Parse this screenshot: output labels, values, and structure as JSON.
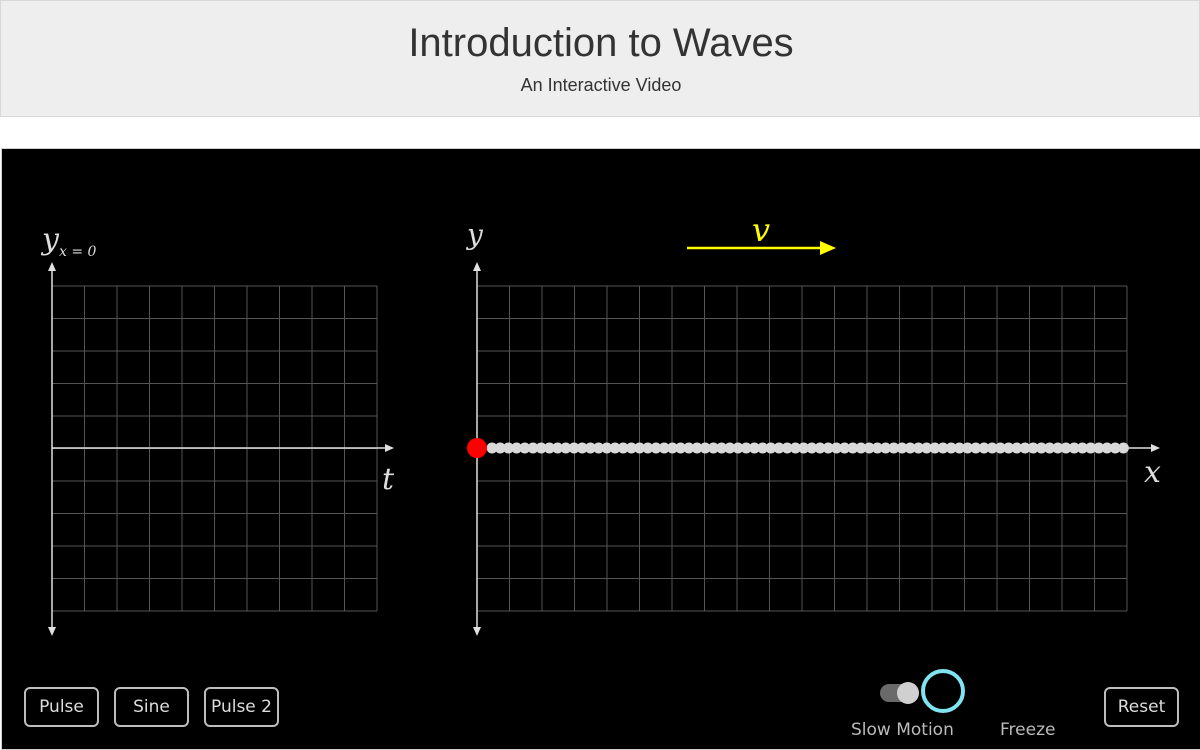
{
  "header": {
    "title": "Introduction to Waves",
    "subtitle": "An Interactive Video"
  },
  "left_graph": {
    "y_label": "y",
    "y_subscript": "x = 0",
    "x_label": "t"
  },
  "right_graph": {
    "y_label": "y",
    "x_label": "x",
    "velocity_label": "v",
    "velocity_color": "#ffff00"
  },
  "wave": {
    "source_color": "#ff0000",
    "particle_color": "#d9d9d9"
  },
  "controls": {
    "pulse_label": "Pulse",
    "sine_label": "Sine",
    "pulse2_label": "Pulse 2",
    "slow_motion_label": "Slow Motion",
    "freeze_label": "Freeze",
    "reset_label": "Reset",
    "freeze_ring_color": "#7fe3f0"
  }
}
